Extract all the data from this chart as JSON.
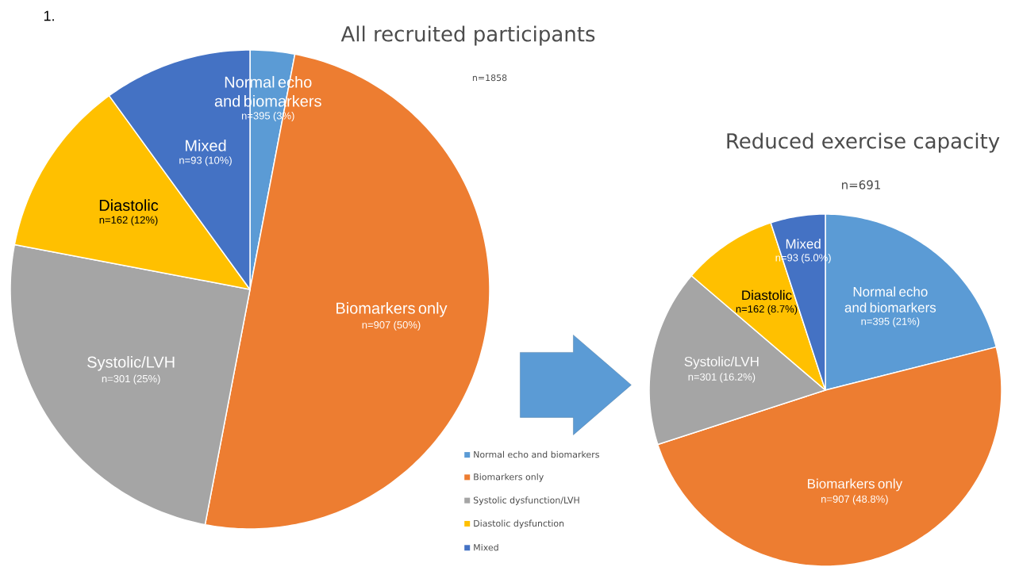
{
  "chart_data": [
    {
      "type": "pie",
      "title": "All recruited participants",
      "subtitle": "n=1858",
      "categories": [
        "Normal echo and biomarkers",
        "Biomarkers only",
        "Systolic dysfunction/LVH",
        "Diastolic dysfunction",
        "Mixed"
      ],
      "values": [
        3,
        50,
        25,
        12,
        10
      ],
      "colors": [
        "#5b9bd5",
        "#ed7d31",
        "#a5a5a5",
        "#ffc000",
        "#4472c4"
      ],
      "value_labels": [
        "n=395 (3%)",
        "n=907 (50%)",
        "n=301 (25%)",
        "n=162 (12%)",
        "n=93 (10%)"
      ],
      "legend": "right",
      "annotations": [
        "1.",
        {
          "text": "Normal echo and biomarkers",
          "x": "Normal echo and biomarkers"
        },
        {
          "text": "Biomarkers only",
          "x": "Biomarkers only"
        },
        {
          "text": "Systolic/LVH",
          "x": "Systolic dysfunction/LVH"
        },
        {
          "text": "Diastolic",
          "x": "Diastolic dysfunction"
        },
        {
          "text": "Mixed",
          "x": "Mixed"
        }
      ]
    },
    {
      "type": "pie",
      "title": "Reduced exercise capacity",
      "subtitle": "n=691",
      "categories": [
        "Normal echo and biomarkers",
        "Biomarkers only",
        "Systolic/LVH",
        "Diastolic",
        "Mixed"
      ],
      "values": [
        21,
        48.8,
        16.2,
        8.7,
        5.0
      ],
      "colors": [
        "#5b9bd5",
        "#ed7d31",
        "#a5a5a5",
        "#ffc000",
        "#4472c4"
      ],
      "value_labels": [
        "n=395 (21%)",
        "n=907 (48.8%)",
        "n=301 (16.2%)",
        "n=162 (8.7%)",
        "n=93 (5.0%)"
      ]
    }
  ]
}
